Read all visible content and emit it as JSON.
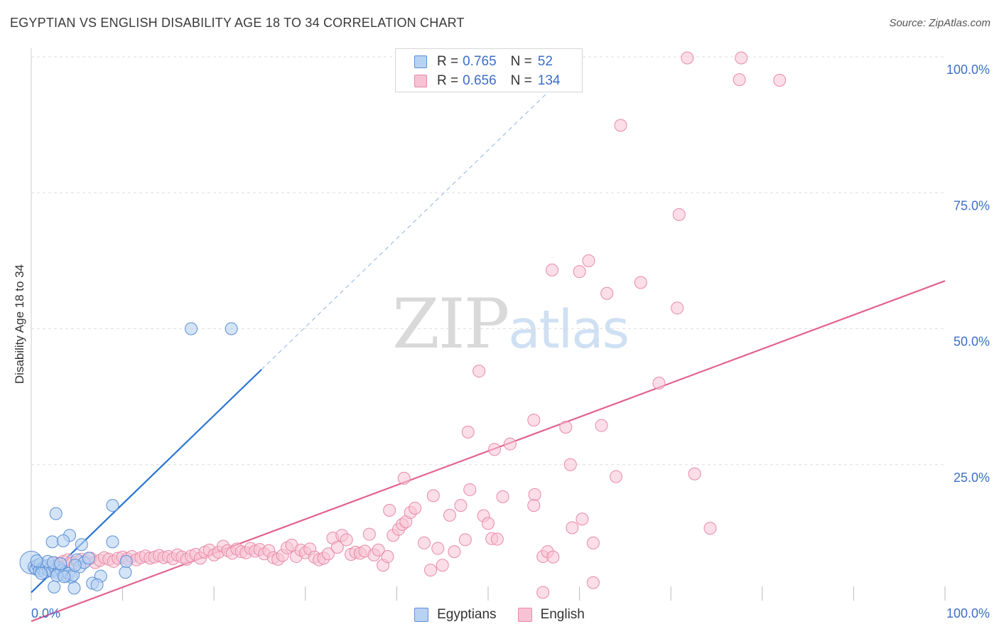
{
  "header": {
    "title": "EGYPTIAN VS ENGLISH DISABILITY AGE 18 TO 34 CORRELATION CHART",
    "source": "Source: ZipAtlas.com"
  },
  "watermark": {
    "zip": "ZIP",
    "atlas": "atlas"
  },
  "legend": {
    "rows": [
      {
        "r_label": "R =",
        "r_value": "0.765",
        "n_label": "N =",
        "n_value": "52"
      },
      {
        "r_label": "R =",
        "r_value": "0.656",
        "n_label": "N =",
        "n_value": "134"
      }
    ]
  },
  "colors": {
    "blue_fill": "#b8d2f2",
    "blue_stroke": "#5b8fd6",
    "blue_line": "#2a74d4",
    "pink_fill": "#f7c2d3",
    "pink_stroke": "#e88aa8",
    "pink_line": "#e2628e",
    "grid": "#dddddd",
    "tick_text": "#3a6fc9"
  },
  "chart_data": {
    "type": "scatter",
    "title": "EGYPTIAN VS ENGLISH DISABILITY AGE 18 TO 34 CORRELATION CHART",
    "xlabel": "",
    "ylabel": "Disability Age 18 to 34",
    "xlim": [
      0,
      100
    ],
    "ylim": [
      0,
      100
    ],
    "x_tick_labels": [
      "0.0%",
      "100.0%"
    ],
    "y_tick_labels": [
      "25.0%",
      "50.0%",
      "75.0%",
      "100.0%"
    ],
    "y_ticks": [
      25,
      50,
      75,
      100
    ],
    "legend_position": "top-center",
    "grid": true,
    "series": [
      {
        "name": "Egyptians",
        "r": 0.765,
        "n": 52,
        "trend": {
          "x0": 0,
          "y0": 1.5,
          "x1": 25.2,
          "y1": 42.5,
          "dashed_to_x": 58
        },
        "points": [
          [
            0.0,
            7.0
          ],
          [
            0.3,
            6.2
          ],
          [
            0.5,
            5.8
          ],
          [
            0.7,
            6.5
          ],
          [
            0.9,
            5.5
          ],
          [
            1.0,
            6.8
          ],
          [
            1.2,
            5.9
          ],
          [
            1.4,
            6.1
          ],
          [
            1.5,
            5.2
          ],
          [
            1.7,
            6.4
          ],
          [
            1.9,
            5.6
          ],
          [
            2.1,
            6.0
          ],
          [
            2.3,
            5.4
          ],
          [
            2.5,
            6.3
          ],
          [
            2.7,
            5.7
          ],
          [
            2.9,
            5.1
          ],
          [
            3.1,
            6.0
          ],
          [
            3.3,
            5.5
          ],
          [
            3.5,
            4.8
          ],
          [
            3.7,
            5.2
          ],
          [
            3.9,
            4.5
          ],
          [
            4.1,
            5.0
          ],
          [
            4.4,
            4.3
          ],
          [
            4.6,
            4.7
          ],
          [
            5.0,
            7.5
          ],
          [
            5.3,
            6.2
          ],
          [
            5.8,
            7.0
          ],
          [
            6.3,
            7.8
          ],
          [
            1.8,
            7.2
          ],
          [
            2.4,
            7.0
          ],
          [
            0.6,
            7.3
          ],
          [
            3.2,
            6.8
          ],
          [
            4.8,
            6.5
          ],
          [
            1.1,
            5.0
          ],
          [
            2.8,
            4.6
          ],
          [
            3.6,
            4.4
          ],
          [
            2.7,
            16.0
          ],
          [
            4.2,
            12.0
          ],
          [
            2.3,
            10.8
          ],
          [
            3.5,
            11.0
          ],
          [
            5.5,
            10.3
          ],
          [
            8.9,
            17.5
          ],
          [
            8.9,
            10.8
          ],
          [
            7.6,
            4.5
          ],
          [
            6.7,
            3.2
          ],
          [
            2.5,
            2.5
          ],
          [
            4.7,
            2.3
          ],
          [
            7.2,
            2.9
          ],
          [
            10.3,
            5.2
          ],
          [
            10.4,
            7.2
          ],
          [
            17.5,
            50.0
          ],
          [
            21.9,
            50.0
          ]
        ]
      },
      {
        "name": "English",
        "r": 0.656,
        "n": 134,
        "trend": {
          "x0": 0,
          "y0": -3.8,
          "x1": 100,
          "y1": 58.8
        },
        "points": [
          [
            0.5,
            6.0
          ],
          [
            1.0,
            6.5
          ],
          [
            1.5,
            5.8
          ],
          [
            2.0,
            6.2
          ],
          [
            2.5,
            7.0
          ],
          [
            3.0,
            6.8
          ],
          [
            3.5,
            7.2
          ],
          [
            4.0,
            7.5
          ],
          [
            4.5,
            6.9
          ],
          [
            5.0,
            7.1
          ],
          [
            5.5,
            7.6
          ],
          [
            6.0,
            7.3
          ],
          [
            6.5,
            7.8
          ],
          [
            7.0,
            7.0
          ],
          [
            7.5,
            7.4
          ],
          [
            8.0,
            7.9
          ],
          [
            8.5,
            7.6
          ],
          [
            9.0,
            7.2
          ],
          [
            9.5,
            7.8
          ],
          [
            10.0,
            8.0
          ],
          [
            10.5,
            7.7
          ],
          [
            11.0,
            8.1
          ],
          [
            11.5,
            7.5
          ],
          [
            12.0,
            7.9
          ],
          [
            12.5,
            8.2
          ],
          [
            13.0,
            7.8
          ],
          [
            13.5,
            8.0
          ],
          [
            14.0,
            8.3
          ],
          [
            14.5,
            7.9
          ],
          [
            15.0,
            8.1
          ],
          [
            15.5,
            7.7
          ],
          [
            16.0,
            8.4
          ],
          [
            16.5,
            8.0
          ],
          [
            17.0,
            7.6
          ],
          [
            17.5,
            8.2
          ],
          [
            18.0,
            8.5
          ],
          [
            18.5,
            7.8
          ],
          [
            19.0,
            8.9
          ],
          [
            19.5,
            9.3
          ],
          [
            20.0,
            8.4
          ],
          [
            20.5,
            8.9
          ],
          [
            21.0,
            10.0
          ],
          [
            21.5,
            9.2
          ],
          [
            22.0,
            8.7
          ],
          [
            22.5,
            9.5
          ],
          [
            23.0,
            9.0
          ],
          [
            23.5,
            8.8
          ],
          [
            24.0,
            9.6
          ],
          [
            24.5,
            9.1
          ],
          [
            25.0,
            9.4
          ],
          [
            25.5,
            8.6
          ],
          [
            26.0,
            9.2
          ],
          [
            26.5,
            7.9
          ],
          [
            27.0,
            7.6
          ],
          [
            27.5,
            8.3
          ],
          [
            28.0,
            9.7
          ],
          [
            28.5,
            10.2
          ],
          [
            29.0,
            8.1
          ],
          [
            29.5,
            9.3
          ],
          [
            30.0,
            8.8
          ],
          [
            30.5,
            9.5
          ],
          [
            31.0,
            8.0
          ],
          [
            31.5,
            7.5
          ],
          [
            32.0,
            7.8
          ],
          [
            32.5,
            8.6
          ],
          [
            33.0,
            11.5
          ],
          [
            33.5,
            9.8
          ],
          [
            34.0,
            12.0
          ],
          [
            34.5,
            11.2
          ],
          [
            35.0,
            8.5
          ],
          [
            35.5,
            8.9
          ],
          [
            36.0,
            8.7
          ],
          [
            36.5,
            9.1
          ],
          [
            37.0,
            12.2
          ],
          [
            37.5,
            8.4
          ],
          [
            38.0,
            9.3
          ],
          [
            38.5,
            6.5
          ],
          [
            39.0,
            8.1
          ],
          [
            39.2,
            16.6
          ],
          [
            39.6,
            12.0
          ],
          [
            40.2,
            13.1
          ],
          [
            40.6,
            14.0
          ],
          [
            41.0,
            14.5
          ],
          [
            41.5,
            16.2
          ],
          [
            42.0,
            17.0
          ],
          [
            40.8,
            22.5
          ],
          [
            44.0,
            19.3
          ],
          [
            43.0,
            10.6
          ],
          [
            43.7,
            5.6
          ],
          [
            44.5,
            9.6
          ],
          [
            45.0,
            6.5
          ],
          [
            45.8,
            15.7
          ],
          [
            46.3,
            9.0
          ],
          [
            47.0,
            17.5
          ],
          [
            47.5,
            11.2
          ],
          [
            48.0,
            20.4
          ],
          [
            47.8,
            31.0
          ],
          [
            49.0,
            42.2
          ],
          [
            49.5,
            15.6
          ],
          [
            50.0,
            14.2
          ],
          [
            50.4,
            11.4
          ],
          [
            51.0,
            11.3
          ],
          [
            51.6,
            19.1
          ],
          [
            50.7,
            27.8
          ],
          [
            52.4,
            28.8
          ],
          [
            55.0,
            33.2
          ],
          [
            56.0,
            8.1
          ],
          [
            56.5,
            9.0
          ],
          [
            57.1,
            8.0
          ],
          [
            56.0,
            1.5
          ],
          [
            55.1,
            19.5
          ],
          [
            55.0,
            17.5
          ],
          [
            58.5,
            31.9
          ],
          [
            59.0,
            25.0
          ],
          [
            59.2,
            13.4
          ],
          [
            60.3,
            15.0
          ],
          [
            61.5,
            3.3
          ],
          [
            61.5,
            10.6
          ],
          [
            62.4,
            32.2
          ],
          [
            61.0,
            62.5
          ],
          [
            60.0,
            60.5
          ],
          [
            57.0,
            60.8
          ],
          [
            63.0,
            56.5
          ],
          [
            64.0,
            22.8
          ],
          [
            66.7,
            58.5
          ],
          [
            68.7,
            40.0
          ],
          [
            70.7,
            53.8
          ],
          [
            70.9,
            71.0
          ],
          [
            72.6,
            23.3
          ],
          [
            74.3,
            13.3
          ],
          [
            64.5,
            87.4
          ],
          [
            71.8,
            99.8
          ],
          [
            77.7,
            99.8
          ],
          [
            77.5,
            95.8
          ],
          [
            81.9,
            95.7
          ]
        ]
      }
    ]
  }
}
